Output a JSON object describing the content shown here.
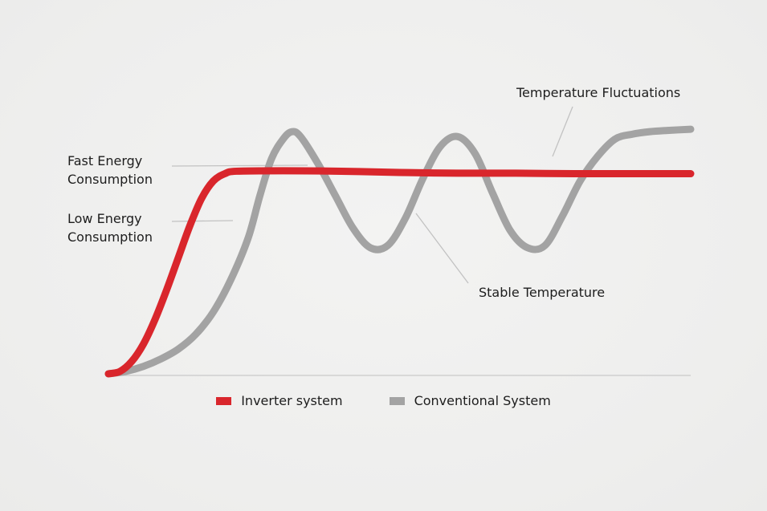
{
  "chart_data": {
    "type": "line",
    "title": "",
    "xlabel": "",
    "ylabel": "",
    "axis": {
      "x_baseline": true,
      "y_axis": false,
      "ticks": false
    },
    "grid": false,
    "legend_position": "bottom-center",
    "series": [
      {
        "name": "Inverter system",
        "key": "inverter",
        "color": "#d9262c",
        "points": [
          [
            0,
            0.0
          ],
          [
            0.02,
            0.01
          ],
          [
            0.04,
            0.05
          ],
          [
            0.06,
            0.12
          ],
          [
            0.08,
            0.22
          ],
          [
            0.1,
            0.34
          ],
          [
            0.12,
            0.47
          ],
          [
            0.14,
            0.6
          ],
          [
            0.16,
            0.71
          ],
          [
            0.18,
            0.78
          ],
          [
            0.2,
            0.81
          ],
          [
            0.22,
            0.82
          ],
          [
            0.3,
            0.822
          ],
          [
            0.4,
            0.82
          ],
          [
            0.5,
            0.815
          ],
          [
            0.6,
            0.812
          ],
          [
            0.7,
            0.812
          ],
          [
            0.8,
            0.81
          ],
          [
            0.9,
            0.81
          ],
          [
            1.0,
            0.81
          ]
        ]
      },
      {
        "name": "Conventional System",
        "key": "conventional",
        "color": "#a3a3a3",
        "points": [
          [
            0,
            0.0
          ],
          [
            0.03,
            0.01
          ],
          [
            0.06,
            0.03
          ],
          [
            0.09,
            0.06
          ],
          [
            0.12,
            0.1
          ],
          [
            0.15,
            0.16
          ],
          [
            0.18,
            0.25
          ],
          [
            0.21,
            0.38
          ],
          [
            0.24,
            0.55
          ],
          [
            0.26,
            0.72
          ],
          [
            0.28,
            0.87
          ],
          [
            0.3,
            0.95
          ],
          [
            0.315,
            0.98
          ],
          [
            0.33,
            0.96
          ],
          [
            0.36,
            0.85
          ],
          [
            0.39,
            0.72
          ],
          [
            0.42,
            0.59
          ],
          [
            0.45,
            0.51
          ],
          [
            0.48,
            0.52
          ],
          [
            0.51,
            0.63
          ],
          [
            0.54,
            0.79
          ],
          [
            0.57,
            0.92
          ],
          [
            0.6,
            0.96
          ],
          [
            0.63,
            0.89
          ],
          [
            0.66,
            0.73
          ],
          [
            0.69,
            0.58
          ],
          [
            0.72,
            0.51
          ],
          [
            0.75,
            0.52
          ],
          [
            0.78,
            0.64
          ],
          [
            0.81,
            0.78
          ],
          [
            0.84,
            0.88
          ],
          [
            0.87,
            0.95
          ],
          [
            0.9,
            0.97
          ],
          [
            0.93,
            0.98
          ],
          [
            0.96,
            0.985
          ],
          [
            1.0,
            0.99
          ]
        ]
      }
    ],
    "annotations": [
      {
        "key": "fast-energy-consumption",
        "lines": [
          "Fast Energy",
          "Consumption"
        ],
        "series": "conventional"
      },
      {
        "key": "low-energy-consumption",
        "lines": [
          "Low Energy",
          "Consumption"
        ],
        "series": "inverter"
      },
      {
        "key": "temperature-fluctuations",
        "lines": [
          "Temperature Fluctuations"
        ],
        "series": "conventional"
      },
      {
        "key": "stable-temperature",
        "lines": [
          "Stable Temperature"
        ],
        "series": "inverter"
      }
    ],
    "colors": {
      "axis": "#cfcfcf",
      "leader": "#c2c2c2"
    }
  }
}
